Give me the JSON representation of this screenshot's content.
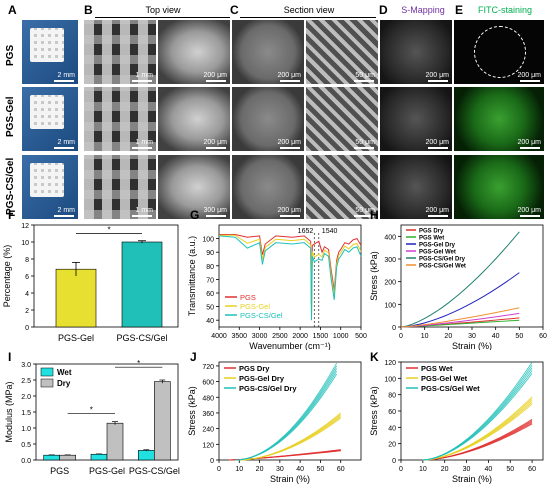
{
  "figure": {
    "panel_labels": [
      "A",
      "B",
      "C",
      "D",
      "E",
      "F",
      "G",
      "H",
      "I",
      "J",
      "K"
    ],
    "headers": {
      "top_view": "Top view",
      "section_view": "Section view",
      "s_mapping": "S-Mapping",
      "fitc": "FITC-staining"
    },
    "rows": [
      "PGS",
      "PGS-Gel",
      "PGS-CS/Gel"
    ],
    "scalebars": {
      "a": "2 mm",
      "b1": "1 mm",
      "b2": "200 μm",
      "b2_alt": "300 μm",
      "c1": "200 μm",
      "c2": "50 μm",
      "d": "200 μm",
      "e": "200 μm"
    },
    "colors": {
      "s_mapping_label": "#7030a0",
      "fitc_label": "#00b050"
    }
  },
  "chart_data": [
    {
      "panel": "F",
      "type": "bar",
      "categories": [
        "PGS-Gel",
        "PGS-CS/Gel"
      ],
      "values": [
        6.8,
        10.0
      ],
      "errors": [
        0.8,
        0.15
      ],
      "colors": [
        "#e8e030",
        "#20c0b8"
      ],
      "ylabel": "Percentage (%)",
      "ylim": [
        0,
        12
      ],
      "yticks": [
        0,
        2,
        4,
        6,
        8,
        10,
        12
      ],
      "significance": "*"
    },
    {
      "panel": "G",
      "type": "line",
      "xlabel": "Wavenumber (cm⁻¹)",
      "ylabel": "Transmittance (a.u.)",
      "xlim": [
        4000,
        500
      ],
      "ylim": [
        35,
        110
      ],
      "xticks": [
        4000,
        3500,
        3000,
        2500,
        2000,
        1500,
        1000,
        500
      ],
      "yticks": [
        40,
        50,
        60,
        70,
        80,
        90,
        100
      ],
      "annotations": [
        "1652",
        "1540"
      ],
      "series": [
        {
          "name": "PGS",
          "color": "#e03030",
          "x": [
            4000,
            3600,
            3300,
            3000,
            2930,
            2860,
            2600,
            2200,
            1900,
            1740,
            1720,
            1700,
            1650,
            1540,
            1460,
            1400,
            1300,
            1240,
            1160,
            1100,
            1050,
            1000,
            900,
            800,
            700,
            600,
            500
          ],
          "y": [
            103,
            103,
            101,
            102,
            88,
            96,
            102,
            101,
            102,
            98,
            45,
            95,
            96,
            98,
            90,
            94,
            92,
            78,
            62,
            84,
            90,
            92,
            97,
            96,
            99,
            100,
            95
          ]
        },
        {
          "name": "PGS-Gel",
          "color": "#e8d020",
          "x": [
            4000,
            3600,
            3300,
            3000,
            2930,
            2860,
            2600,
            2200,
            1900,
            1740,
            1720,
            1700,
            1650,
            1540,
            1460,
            1400,
            1300,
            1240,
            1160,
            1100,
            1050,
            1000,
            900,
            800,
            700,
            600,
            500
          ],
          "y": [
            104,
            104,
            98,
            101,
            86,
            95,
            101,
            100,
            101,
            97,
            44,
            92,
            88,
            90,
            88,
            93,
            91,
            76,
            60,
            83,
            89,
            91,
            96,
            94,
            97,
            98,
            92
          ]
        },
        {
          "name": "PGS-CS/Gel",
          "color": "#20c0b8",
          "x": [
            4000,
            3600,
            3300,
            3000,
            2930,
            2860,
            2600,
            2200,
            1900,
            1740,
            1720,
            1700,
            1650,
            1540,
            1460,
            1400,
            1300,
            1240,
            1160,
            1100,
            1050,
            1000,
            900,
            800,
            700,
            600,
            500
          ],
          "y": [
            105,
            104,
            96,
            100,
            84,
            94,
            100,
            99,
            100,
            96,
            43,
            90,
            86,
            88,
            87,
            92,
            90,
            74,
            58,
            82,
            88,
            90,
            95,
            93,
            96,
            97,
            90
          ]
        }
      ]
    },
    {
      "panel": "H",
      "type": "line",
      "xlabel": "Strain (%)",
      "ylabel": "Stress (kPa)",
      "xlim": [
        0,
        60
      ],
      "ylim": [
        0,
        450
      ],
      "xticks": [
        0,
        10,
        20,
        30,
        40,
        50,
        60
      ],
      "yticks": [
        0,
        100,
        200,
        300,
        400
      ],
      "series": [
        {
          "name": "PGS Dry",
          "color": "#e03030",
          "x": [
            0,
            50
          ],
          "y": [
            0,
            40
          ],
          "curve": 1.2
        },
        {
          "name": "PGS Wet",
          "color": "#30b030",
          "x": [
            0,
            50
          ],
          "y": [
            0,
            30
          ],
          "curve": 1.1
        },
        {
          "name": "PGS-Gel Dry",
          "color": "#2020c0",
          "x": [
            0,
            50
          ],
          "y": [
            0,
            240
          ],
          "curve": 1.6
        },
        {
          "name": "PGS-Gel Wet",
          "color": "#d040d0",
          "x": [
            0,
            50
          ],
          "y": [
            0,
            60
          ],
          "curve": 1.3
        },
        {
          "name": "PGS-CS/Gel Dry",
          "color": "#208070",
          "x": [
            0,
            50
          ],
          "y": [
            0,
            420
          ],
          "curve": 1.5
        },
        {
          "name": "PGS-CS/Gel Wet",
          "color": "#f09030",
          "x": [
            0,
            50
          ],
          "y": [
            0,
            85
          ],
          "curve": 1.3
        }
      ]
    },
    {
      "panel": "I",
      "type": "bar",
      "categories": [
        "PGS",
        "PGS-Gel",
        "PGS-CS/Gel"
      ],
      "ylabel": "Modulus (MPa)",
      "ylim": [
        0,
        3.0
      ],
      "yticks": [
        0.0,
        0.5,
        1.0,
        1.5,
        2.0,
        2.5,
        3.0
      ],
      "series": [
        {
          "name": "Wet",
          "color": "#20e0e0",
          "values": [
            0.15,
            0.18,
            0.3
          ],
          "errors": [
            0.01,
            0.01,
            0.02
          ]
        },
        {
          "name": "Dry",
          "color": "#c0c0c0",
          "values": [
            0.15,
            1.15,
            2.45
          ],
          "errors": [
            0.01,
            0.05,
            0.05
          ]
        }
      ],
      "significance": "*"
    },
    {
      "panel": "J",
      "type": "line",
      "xlabel": "Strain (%)",
      "ylabel": "Stress (kPa)",
      "xlim": [
        0,
        70
      ],
      "ylim": [
        0,
        750
      ],
      "xticks": [
        0,
        10,
        20,
        30,
        40,
        50,
        60
      ],
      "yticks": [
        0,
        120,
        240,
        360,
        480,
        600,
        720
      ],
      "series": [
        {
          "name": "PGS Dry",
          "color": "#e03030",
          "end": [
            60,
            75
          ],
          "start": 5,
          "curve": 1.3
        },
        {
          "name": "PGS-Gel Dry",
          "color": "#e8d020",
          "end": [
            60,
            340
          ],
          "start": 10,
          "curve": 1.8
        },
        {
          "name": "PGS-CS/Gel Dry",
          "color": "#20c0b8",
          "end": [
            58,
            700
          ],
          "start": 8,
          "curve": 1.9
        }
      ]
    },
    {
      "panel": "K",
      "type": "line",
      "xlabel": "Strain (%)",
      "ylabel": "Stress (kPa)",
      "xlim": [
        0,
        65
      ],
      "ylim": [
        0,
        120
      ],
      "xticks": [
        0,
        10,
        20,
        30,
        40,
        50,
        60
      ],
      "yticks": [
        0,
        20,
        40,
        60,
        80,
        100,
        120
      ],
      "series": [
        {
          "name": "PGS Wet",
          "color": "#e03030",
          "end": [
            60,
            47
          ],
          "start": 10,
          "curve": 1.7
        },
        {
          "name": "PGS-Gel Wet",
          "color": "#e8d020",
          "end": [
            60,
            73
          ],
          "start": 10,
          "curve": 1.7
        },
        {
          "name": "PGS-CS/Gel Wet",
          "color": "#20c0b8",
          "end": [
            60,
            113
          ],
          "start": 10,
          "curve": 1.7
        }
      ]
    }
  ]
}
